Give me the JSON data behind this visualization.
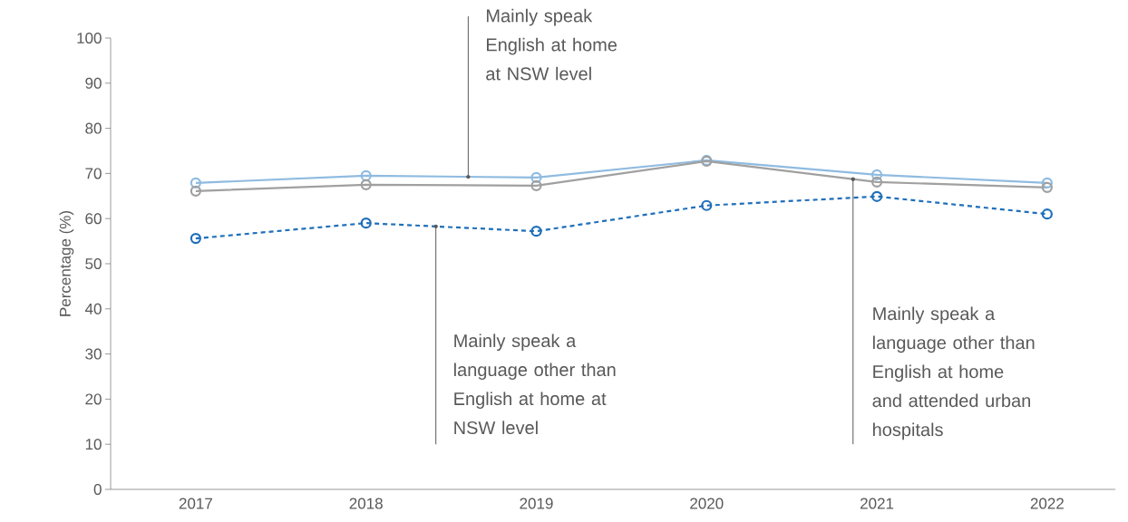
{
  "chart_data": {
    "type": "line",
    "ylabel": "Percentage (%)",
    "categories": [
      "2017",
      "2018",
      "2019",
      "2020",
      "2021",
      "2022"
    ],
    "ylim": [
      0,
      100
    ],
    "yticks": [
      0,
      10,
      20,
      30,
      40,
      50,
      60,
      70,
      80,
      90,
      100
    ],
    "marker": "circle",
    "grid": false,
    "legend": false,
    "series": [
      {
        "name": "Mainly speak English at home at NSW level",
        "color": "#8fbbe0",
        "line_style": "solid",
        "values": [
          67.9,
          69.5,
          69.1,
          72.9,
          69.7,
          67.9
        ]
      },
      {
        "name": "Mainly speak a language other than English at home at NSW level",
        "color": "#1f6fba",
        "line_style": "dashed",
        "values": [
          55.6,
          59.0,
          57.2,
          62.9,
          64.9,
          61.0
        ]
      },
      {
        "name": "Mainly speak a language other than English at home and attended urban hospitals",
        "color": "#a0a0a0",
        "line_style": "solid",
        "values": [
          66.1,
          67.5,
          67.3,
          72.7,
          68.1,
          66.9
        ]
      }
    ]
  }
}
